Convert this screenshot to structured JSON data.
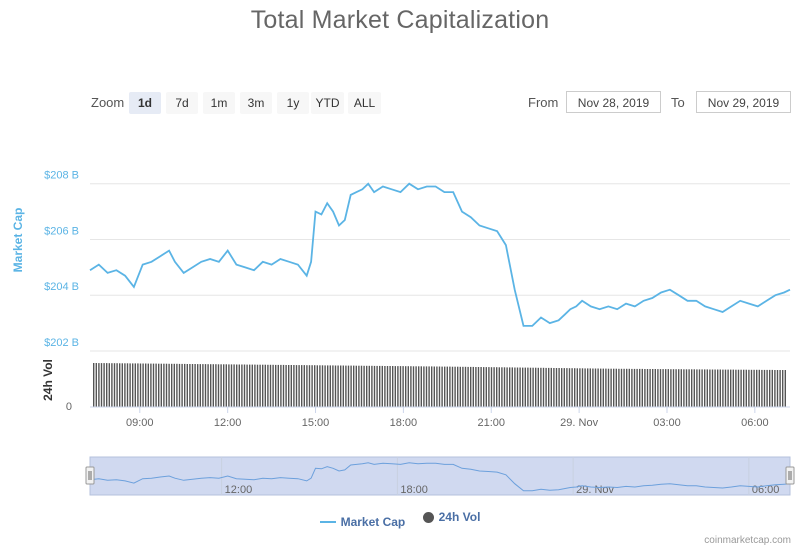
{
  "title": "Total Market Capitalization",
  "zoom": {
    "label": "Zoom",
    "buttons": [
      "1d",
      "7d",
      "1m",
      "3m",
      "1y",
      "YTD",
      "ALL"
    ],
    "active": "1d"
  },
  "range": {
    "from_label": "From",
    "from_value": "Nov 28, 2019",
    "to_label": "To",
    "to_value": "Nov 29, 2019"
  },
  "legend": {
    "market_cap": "Market Cap",
    "volume": "24h Vol"
  },
  "credit": "coinmarketcap.com",
  "colors": {
    "market_cap_line": "#5bb4e5",
    "volume_bars": "#555555",
    "navigator_fill": "#d0d9f0",
    "accent_text": "#4a6fa5"
  },
  "chart_data": {
    "type": "line",
    "title": "Total Market Capitalization",
    "x_tick_labels": [
      "09:00",
      "12:00",
      "15:00",
      "18:00",
      "21:00",
      "29. Nov",
      "03:00",
      "06:00"
    ],
    "navigator_tick_labels": [
      "12:00",
      "18:00",
      "29. Nov",
      "06:00"
    ],
    "x_range_hours": [
      7.3,
      31.2
    ],
    "y_axis_label": "Market Cap",
    "y_ticks": [
      "$202 B",
      "$204 B",
      "$206 B",
      "$208 B"
    ],
    "ylim": [
      202,
      208.6
    ],
    "volume_axis_label": "24h Vol",
    "volume_ticks": [
      "0"
    ],
    "series": [
      {
        "name": "Market Cap",
        "unit": "billion USD",
        "x_hours": [
          7.3,
          7.6,
          7.9,
          8.2,
          8.5,
          8.8,
          9.1,
          9.4,
          9.7,
          10.0,
          10.2,
          10.5,
          10.8,
          11.1,
          11.4,
          11.7,
          12.0,
          12.3,
          12.6,
          12.9,
          13.2,
          13.5,
          13.8,
          14.1,
          14.4,
          14.7,
          14.85,
          15.0,
          15.2,
          15.4,
          15.6,
          15.8,
          16.0,
          16.2,
          16.4,
          16.6,
          16.8,
          17.0,
          17.3,
          17.6,
          17.9,
          18.2,
          18.5,
          18.8,
          19.1,
          19.4,
          19.7,
          20.0,
          20.3,
          20.6,
          20.9,
          21.2,
          21.5,
          21.8,
          22.1,
          22.4,
          22.7,
          23.0,
          23.3,
          23.5,
          23.7,
          23.9,
          24.1,
          24.4,
          24.7,
          25.0,
          25.3,
          25.6,
          25.9,
          26.2,
          26.5,
          26.8,
          27.1,
          27.4,
          27.7,
          28.0,
          28.3,
          28.6,
          28.9,
          29.2,
          29.5,
          29.8,
          30.1,
          30.4,
          30.7,
          31.0,
          31.2
        ],
        "values": [
          204.9,
          205.1,
          204.8,
          204.9,
          204.7,
          204.3,
          205.1,
          205.2,
          205.4,
          205.6,
          205.2,
          204.8,
          205.0,
          205.2,
          205.3,
          205.2,
          205.6,
          205.1,
          205.0,
          204.9,
          205.2,
          205.1,
          205.3,
          205.2,
          205.1,
          204.7,
          205.2,
          207.0,
          206.9,
          207.3,
          207.0,
          206.5,
          206.7,
          207.6,
          207.7,
          207.8,
          208.0,
          207.7,
          207.9,
          207.8,
          207.7,
          208.0,
          207.8,
          207.9,
          207.9,
          207.7,
          207.7,
          207.0,
          206.8,
          206.5,
          206.4,
          206.3,
          205.8,
          204.2,
          202.9,
          202.9,
          203.2,
          203.0,
          203.1,
          203.3,
          203.5,
          203.6,
          203.8,
          203.6,
          203.5,
          203.6,
          203.5,
          203.7,
          203.6,
          203.8,
          203.9,
          204.1,
          204.2,
          204.0,
          203.8,
          203.8,
          203.6,
          203.5,
          203.4,
          203.6,
          203.8,
          203.7,
          203.6,
          203.8,
          204.0,
          204.1,
          204.2
        ]
      },
      {
        "name": "24h Vol",
        "relative_level": [
          1.0,
          0.96,
          0.92,
          0.87,
          0.84
        ]
      }
    ],
    "grid": true,
    "legend_position": "bottom-center"
  }
}
